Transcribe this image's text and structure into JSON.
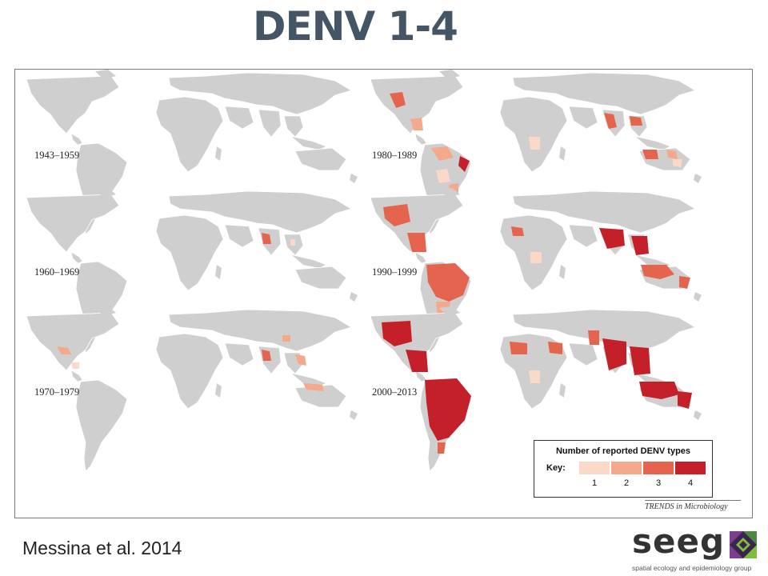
{
  "slide": {
    "title": "DENV 1-4",
    "citation": "Messina et al. 2014"
  },
  "figure": {
    "periods": [
      {
        "label": "1943–1959",
        "panel": "americas",
        "intensity": 0
      },
      {
        "label": "1980–1989",
        "panel": "americas",
        "intensity": 2
      },
      {
        "label": "1960–1969",
        "panel": "americas",
        "intensity": 0
      },
      {
        "label": "1990–1999",
        "panel": "americas",
        "intensity": 3
      },
      {
        "label": "1970–1979",
        "panel": "americas",
        "intensity": 1
      },
      {
        "label": "2000–2013",
        "panel": "americas",
        "intensity": 4
      }
    ],
    "legend": {
      "title": "Number of reported DENV types",
      "key_label": "Key:",
      "categories": [
        {
          "value": "1",
          "color": "#fbd9c9"
        },
        {
          "value": "2",
          "color": "#f4a98d"
        },
        {
          "value": "3",
          "color": "#e5644e"
        },
        {
          "value": "4",
          "color": "#c4202a"
        }
      ]
    },
    "credit": "TRENDS in Microbiology",
    "land_color": "#cfcfcf"
  },
  "logo": {
    "wordmark": "seeg",
    "tagline": "spatial ecology and epidemiology group",
    "colors": [
      "#3d2450",
      "#7a3f8f",
      "#4a8c3f",
      "#7bbf3a"
    ]
  }
}
